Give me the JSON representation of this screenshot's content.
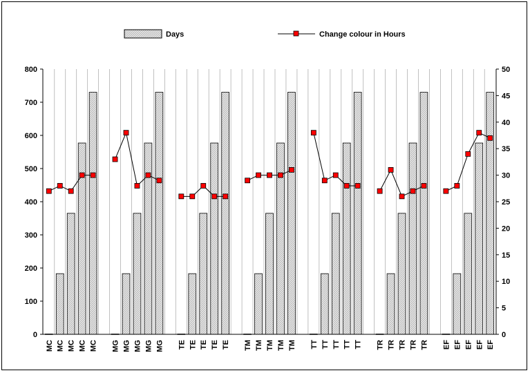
{
  "chart_data": {
    "type": "bar",
    "categories": [
      "MC",
      "MC",
      "MC",
      "MC",
      "MC",
      "MG",
      "MG",
      "MG",
      "MG",
      "MG",
      "TE",
      "TE",
      "TE",
      "TE",
      "TE",
      "TM",
      "TM",
      "TM",
      "TM",
      "TM",
      "TT",
      "TT",
      "TT",
      "TT",
      "TT",
      "TR",
      "TR",
      "TR",
      "TR",
      "TR",
      "EF",
      "EF",
      "EF",
      "EF",
      "EF"
    ],
    "groups": [
      "MC",
      "MG",
      "TE",
      "TM",
      "TT",
      "TR",
      "EF"
    ],
    "series": [
      {
        "name": "Days",
        "type": "bar",
        "axis": "left",
        "color": "#d9d9d9",
        "values": [
          1,
          183,
          365,
          577,
          730,
          1,
          183,
          365,
          577,
          730,
          1,
          183,
          365,
          577,
          730,
          1,
          183,
          365,
          577,
          730,
          1,
          183,
          365,
          577,
          730,
          1,
          183,
          365,
          577,
          730,
          1,
          183,
          365,
          577,
          730
        ]
      },
      {
        "name": "Change colour in Hours",
        "type": "line",
        "axis": "right",
        "color": "#000000",
        "marker_color": "#ff0000",
        "values": [
          27,
          28,
          27,
          30,
          30,
          33,
          38,
          28,
          30,
          29,
          26,
          26,
          28,
          26,
          26,
          29,
          30,
          30,
          30,
          31,
          38,
          29,
          30,
          28,
          28,
          27,
          31,
          26,
          27,
          28,
          27,
          28,
          34,
          38,
          37
        ]
      }
    ],
    "y_left": {
      "ylim": [
        0,
        800
      ],
      "ticks": [
        "0",
        "100",
        "200",
        "300",
        "400",
        "500",
        "600",
        "700",
        "800"
      ]
    },
    "y_right": {
      "ylim": [
        0,
        50
      ],
      "ticks": [
        "0",
        "5",
        "10",
        "15",
        "20",
        "25",
        "30",
        "35",
        "40",
        "45",
        "50"
      ]
    },
    "grid": "vertical",
    "legend": "top"
  }
}
